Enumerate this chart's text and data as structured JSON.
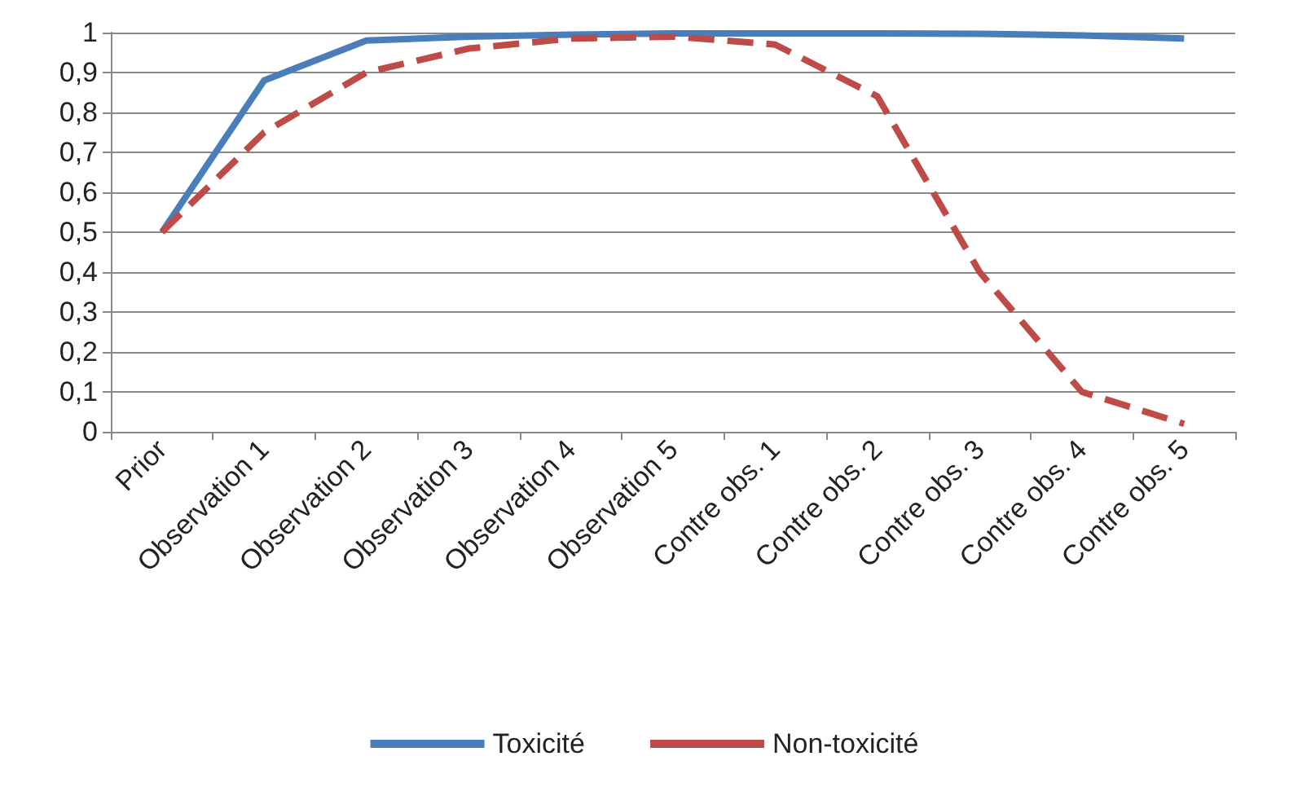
{
  "chart_data": {
    "type": "line",
    "categories": [
      "Prior",
      "Observation 1",
      "Observation 2",
      "Observation 3",
      "Observation 4",
      "Observation 5",
      "Contre obs. 1",
      "Contre obs. 2",
      "Contre obs. 3",
      "Contre obs. 4",
      "Contre obs. 5"
    ],
    "series": [
      {
        "name": "Toxicité",
        "color": "#4a7ebb",
        "line_style": "solid",
        "values": [
          0.5,
          0.88,
          0.98,
          0.99,
          0.995,
          0.998,
          0.998,
          0.998,
          0.997,
          0.993,
          0.985
        ]
      },
      {
        "name": "Non-toxicité",
        "color": "#be4b48",
        "line_style": "dashed",
        "values": [
          0.5,
          0.75,
          0.9,
          0.96,
          0.985,
          0.99,
          0.97,
          0.84,
          0.4,
          0.1,
          0.02
        ]
      }
    ],
    "ylim": [
      0,
      1
    ],
    "yticks": [
      0,
      {
        "value": 0.1,
        "label": "0,1"
      },
      {
        "value": 0.2,
        "label": "0,2"
      },
      {
        "value": 0.3,
        "label": "0,3"
      },
      {
        "value": 0.4,
        "label": "0,4"
      },
      {
        "value": 0.5,
        "label": "0,5"
      },
      {
        "value": 0.6,
        "label": "0,6"
      },
      {
        "value": 0.7,
        "label": "0,7"
      },
      {
        "value": 0.8,
        "label": "0,8"
      },
      {
        "value": 0.9,
        "label": "0,9"
      },
      1
    ],
    "grid": "y",
    "legend": "bottom",
    "marker": "none"
  }
}
